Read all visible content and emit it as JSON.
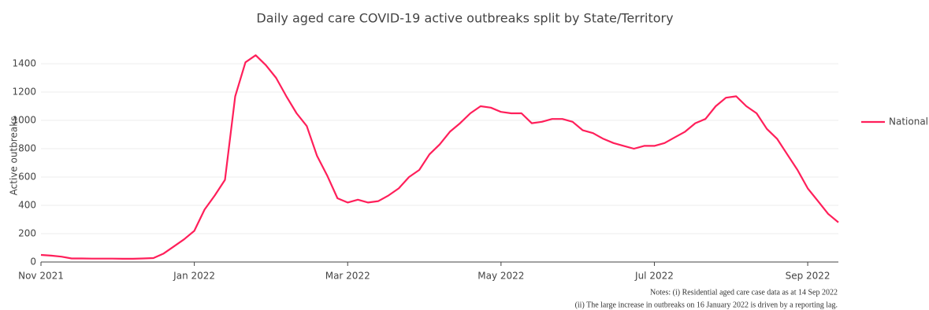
{
  "chart_data": {
    "type": "line",
    "title": "Daily aged care COVID-19 active outbreaks split by State/Territory",
    "y_label": "Active outbreaks",
    "annotations": [
      "Notes: (i) Residential aged care case data as at 14 Sep 2022",
      "(ii) The large increase in outbreaks on 16 January 2022 is driven by a reporting lag."
    ],
    "categories": [
      "Nov 2021",
      null,
      null,
      null,
      null,
      null,
      null,
      null,
      null,
      null,
      null,
      null,
      null,
      null,
      null,
      "Jan 2022",
      null,
      null,
      null,
      null,
      null,
      null,
      null,
      null,
      null,
      null,
      null,
      null,
      null,
      null,
      "Mar 2022",
      null,
      null,
      null,
      null,
      null,
      null,
      null,
      null,
      null,
      null,
      null,
      null,
      null,
      null,
      "May 2022",
      null,
      null,
      null,
      null,
      null,
      null,
      null,
      null,
      null,
      null,
      null,
      null,
      null,
      null,
      "Jul 2022",
      null,
      null,
      null,
      null,
      null,
      null,
      null,
      null,
      null,
      null,
      null,
      null,
      null,
      null,
      "Sep 2022",
      null,
      null,
      null
    ],
    "series": [
      {
        "name": "National",
        "color": "#ff1f5a",
        "values": [
          50,
          45,
          38,
          25,
          25,
          24,
          24,
          24,
          23,
          23,
          25,
          28,
          60,
          110,
          160,
          220,
          370,
          470,
          580,
          1170,
          1410,
          1460,
          1390,
          1300,
          1170,
          1050,
          960,
          750,
          610,
          450,
          420,
          440,
          420,
          430,
          470,
          520,
          600,
          650,
          760,
          830,
          920,
          980,
          1050,
          1100,
          1090,
          1060,
          1050,
          1050,
          980,
          990,
          1010,
          1010,
          990,
          930,
          910,
          870,
          840,
          820,
          800,
          820,
          820,
          840,
          880,
          920,
          980,
          1010,
          1100,
          1160,
          1170,
          1100,
          1050,
          940,
          870,
          760,
          650,
          520,
          430,
          340,
          280
        ]
      }
    ],
    "ylim": [
      0,
      1500
    ],
    "yticks": [
      0,
      200,
      400,
      600,
      800,
      1000,
      1200,
      1400
    ],
    "grid": true,
    "legend": "right"
  }
}
